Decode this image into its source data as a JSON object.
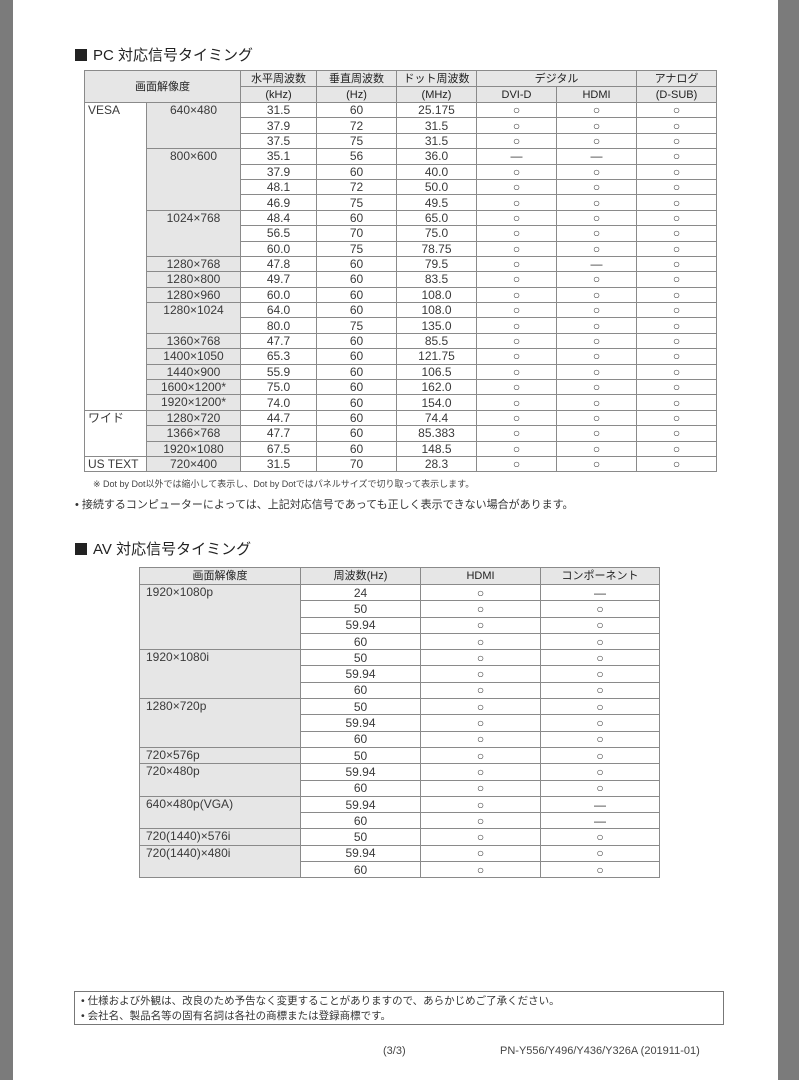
{
  "pc": {
    "title": "PC 対応信号タイミング",
    "headers": {
      "resolution": "画面解像度",
      "h_freq": "水平周波数",
      "h_unit": "(kHz)",
      "v_freq": "垂直周波数",
      "v_unit": "(Hz)",
      "dot_freq": "ドット周波数",
      "dot_unit": "(MHz)",
      "digital": "デジタル",
      "dvi": "DVI-D",
      "hdmi": "HDMI",
      "analog": "アナログ",
      "dsub": "(D-SUB)"
    },
    "groups": [
      {
        "name": "VESA",
        "resolutions": [
          {
            "res": "640×480",
            "rows": [
              [
                "31.5",
                "60",
                "25.175",
                "○",
                "○",
                "○"
              ],
              [
                "37.9",
                "72",
                "31.5",
                "○",
                "○",
                "○"
              ],
              [
                "37.5",
                "75",
                "31.5",
                "○",
                "○",
                "○"
              ]
            ]
          },
          {
            "res": "800×600",
            "rows": [
              [
                "35.1",
                "56",
                "36.0",
                "—",
                "—",
                "○"
              ],
              [
                "37.9",
                "60",
                "40.0",
                "○",
                "○",
                "○"
              ],
              [
                "48.1",
                "72",
                "50.0",
                "○",
                "○",
                "○"
              ],
              [
                "46.9",
                "75",
                "49.5",
                "○",
                "○",
                "○"
              ]
            ]
          },
          {
            "res": "1024×768",
            "rows": [
              [
                "48.4",
                "60",
                "65.0",
                "○",
                "○",
                "○"
              ],
              [
                "56.5",
                "70",
                "75.0",
                "○",
                "○",
                "○"
              ],
              [
                "60.0",
                "75",
                "78.75",
                "○",
                "○",
                "○"
              ]
            ]
          },
          {
            "res": "1280×768",
            "rows": [
              [
                "47.8",
                "60",
                "79.5",
                "○",
                "—",
                "○"
              ]
            ]
          },
          {
            "res": "1280×800",
            "rows": [
              [
                "49.7",
                "60",
                "83.5",
                "○",
                "○",
                "○"
              ]
            ]
          },
          {
            "res": "1280×960",
            "rows": [
              [
                "60.0",
                "60",
                "108.0",
                "○",
                "○",
                "○"
              ]
            ]
          },
          {
            "res": "1280×1024",
            "rows": [
              [
                "64.0",
                "60",
                "108.0",
                "○",
                "○",
                "○"
              ],
              [
                "80.0",
                "75",
                "135.0",
                "○",
                "○",
                "○"
              ]
            ]
          },
          {
            "res": "1360×768",
            "rows": [
              [
                "47.7",
                "60",
                "85.5",
                "○",
                "○",
                "○"
              ]
            ]
          },
          {
            "res": "1400×1050",
            "rows": [
              [
                "65.3",
                "60",
                "121.75",
                "○",
                "○",
                "○"
              ]
            ]
          },
          {
            "res": "1440×900",
            "rows": [
              [
                "55.9",
                "60",
                "106.5",
                "○",
                "○",
                "○"
              ]
            ]
          },
          {
            "res": "1600×1200*",
            "rows": [
              [
                "75.0",
                "60",
                "162.0",
                "○",
                "○",
                "○"
              ]
            ]
          },
          {
            "res": "1920×1200*",
            "rows": [
              [
                "74.0",
                "60",
                "154.0",
                "○",
                "○",
                "○"
              ]
            ]
          }
        ]
      },
      {
        "name": "ワイド",
        "resolutions": [
          {
            "res": "1280×720",
            "rows": [
              [
                "44.7",
                "60",
                "74.4",
                "○",
                "○",
                "○"
              ]
            ]
          },
          {
            "res": "1366×768",
            "rows": [
              [
                "47.7",
                "60",
                "85.383",
                "○",
                "○",
                "○"
              ]
            ]
          },
          {
            "res": "1920×1080",
            "rows": [
              [
                "67.5",
                "60",
                "148.5",
                "○",
                "○",
                "○"
              ]
            ]
          }
        ]
      },
      {
        "name": "US TEXT",
        "resolutions": [
          {
            "res": "720×400",
            "rows": [
              [
                "31.5",
                "70",
                "28.3",
                "○",
                "○",
                "○"
              ]
            ]
          }
        ]
      }
    ],
    "footnote": "※ Dot by Dot以外では縮小して表示し、Dot by Dotではパネルサイズで切り取って表示します。",
    "note": "• 接続するコンピューターによっては、上記対応信号であっても正しく表示できない場合があります。"
  },
  "av": {
    "title": "AV 対応信号タイミング",
    "headers": {
      "resolution": "画面解像度",
      "freq": "周波数(Hz)",
      "hdmi": "HDMI",
      "component": "コンポーネント"
    },
    "resolutions": [
      {
        "res": "1920×1080p",
        "rows": [
          [
            "24",
            "○",
            "—"
          ],
          [
            "50",
            "○",
            "○"
          ],
          [
            "59.94",
            "○",
            "○"
          ],
          [
            "60",
            "○",
            "○"
          ]
        ]
      },
      {
        "res": "1920×1080i",
        "rows": [
          [
            "50",
            "○",
            "○"
          ],
          [
            "59.94",
            "○",
            "○"
          ],
          [
            "60",
            "○",
            "○"
          ]
        ]
      },
      {
        "res": "1280×720p",
        "rows": [
          [
            "50",
            "○",
            "○"
          ],
          [
            "59.94",
            "○",
            "○"
          ],
          [
            "60",
            "○",
            "○"
          ]
        ]
      },
      {
        "res": "720×576p",
        "rows": [
          [
            "50",
            "○",
            "○"
          ]
        ]
      },
      {
        "res": "720×480p",
        "rows": [
          [
            "59.94",
            "○",
            "○"
          ],
          [
            "60",
            "○",
            "○"
          ]
        ]
      },
      {
        "res": "640×480p(VGA)",
        "rows": [
          [
            "59.94",
            "○",
            "—"
          ],
          [
            "60",
            "○",
            "—"
          ]
        ]
      },
      {
        "res": "720(1440)×576i",
        "rows": [
          [
            "50",
            "○",
            "○"
          ]
        ]
      },
      {
        "res": "720(1440)×480i",
        "rows": [
          [
            "59.94",
            "○",
            "○"
          ],
          [
            "60",
            "○",
            "○"
          ]
        ]
      }
    ]
  },
  "footer": {
    "notes": [
      "• 仕様および外観は、改良のため予告なく変更することがありますので、あらかじめご了承ください。",
      "• 会社名、製品名等の固有名詞は各社の商標または登録商標です。"
    ],
    "page": "(3/3)",
    "model": "PN-Y556/Y496/Y436/Y326A (201911-01)"
  }
}
